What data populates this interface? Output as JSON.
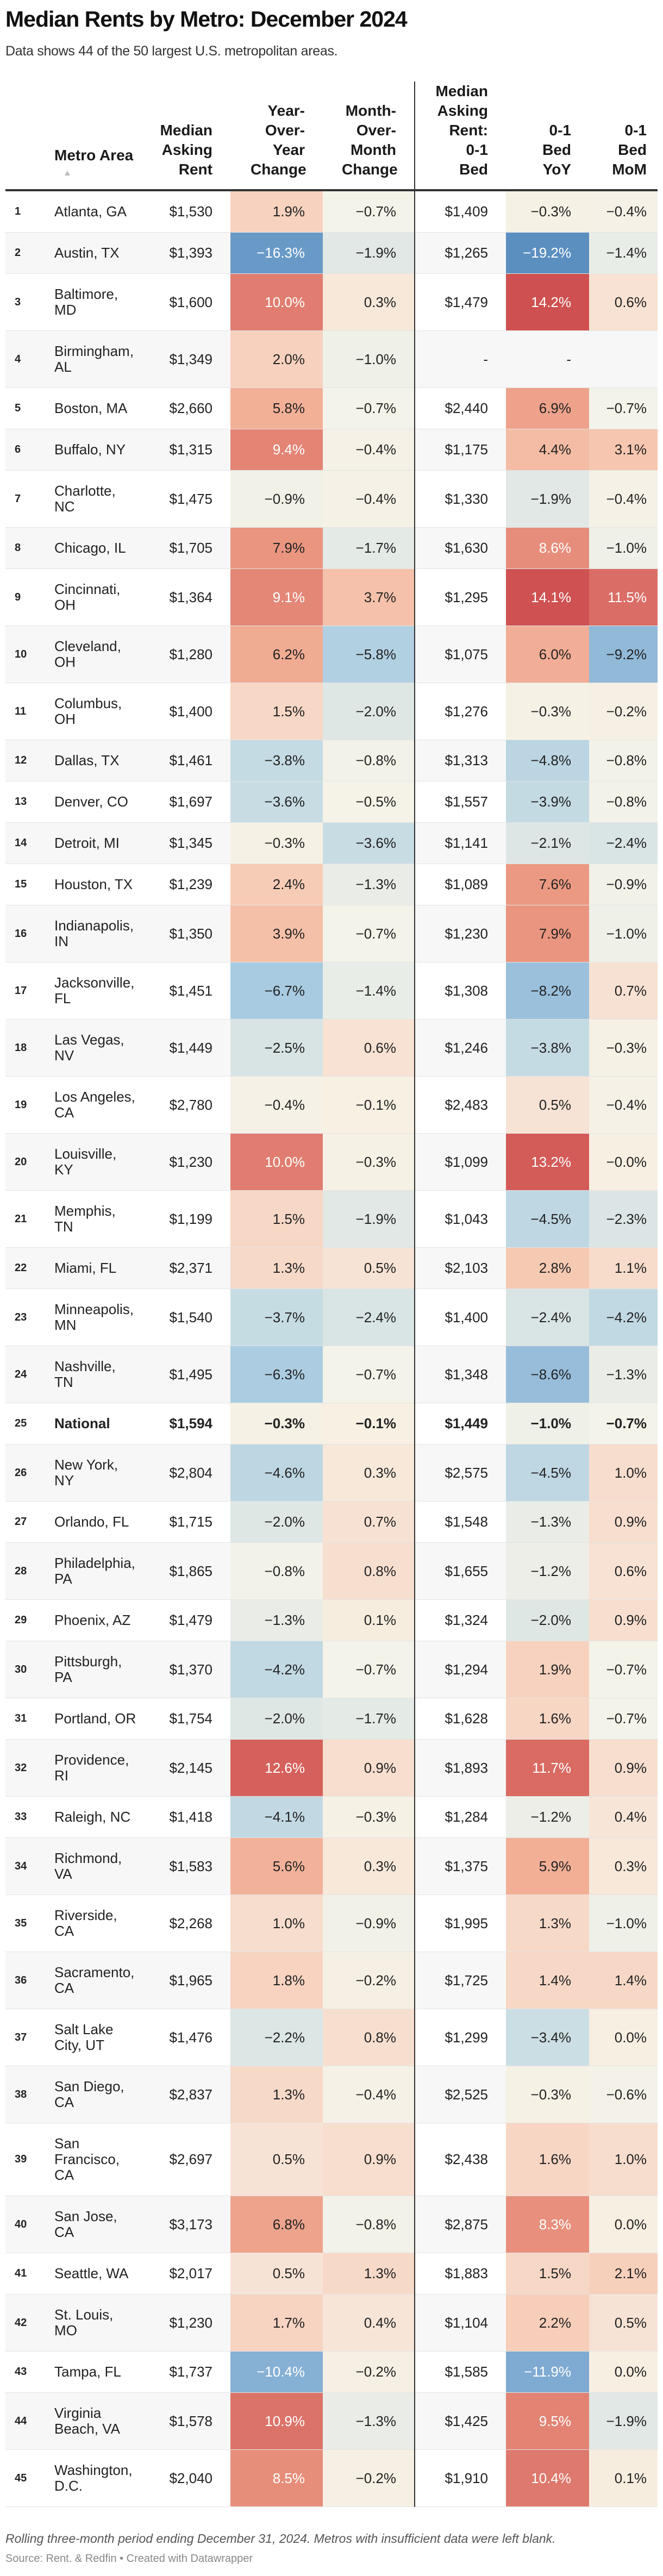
{
  "title": "Median Rents by Metro: December 2024",
  "subtitle": "Data shows 44 of the 50 largest U.S. metropolitan areas.",
  "colors": {
    "negative": "#5b8fc0",
    "neutral": "#f7efe2",
    "positive": "#cf5050",
    "row_alt": "#f7f7f7"
  },
  "chart_data": {
    "type": "table",
    "columns": [
      "",
      "Metro Area",
      "Median Asking Rent",
      "Year-Over-Year Change",
      "Month-Over-Month Change",
      "Median Asking Rent: 0-1 Bed",
      "0-1 Bed YoY",
      "0-1 Bed MoM"
    ],
    "sort": {
      "column": "Metro Area",
      "direction": "ascending",
      "icon": "sort-ascending-icon",
      "symbol": "▲"
    },
    "rows": [
      [
        "1",
        "Atlanta, GA",
        "$1,530",
        "1.9%",
        "−0.7%",
        "$1,409",
        "−0.3%",
        "−0.4%"
      ],
      [
        "2",
        "Austin, TX",
        "$1,393",
        "−16.3%",
        "−1.9%",
        "$1,265",
        "−19.2%",
        "−1.4%"
      ],
      [
        "3",
        "Baltimore, MD",
        "$1,600",
        "10.0%",
        "0.3%",
        "$1,479",
        "14.2%",
        "0.6%"
      ],
      [
        "4",
        "Birmingham, AL",
        "$1,349",
        "2.0%",
        "−1.0%",
        "-",
        "-",
        ""
      ],
      [
        "5",
        "Boston, MA",
        "$2,660",
        "5.8%",
        "−0.7%",
        "$2,440",
        "6.9%",
        "−0.7%"
      ],
      [
        "6",
        "Buffalo, NY",
        "$1,315",
        "9.4%",
        "−0.4%",
        "$1,175",
        "4.4%",
        "3.1%"
      ],
      [
        "7",
        "Charlotte, NC",
        "$1,475",
        "−0.9%",
        "−0.4%",
        "$1,330",
        "−1.9%",
        "−0.4%"
      ],
      [
        "8",
        "Chicago, IL",
        "$1,705",
        "7.9%",
        "−1.7%",
        "$1,630",
        "8.6%",
        "−1.0%"
      ],
      [
        "9",
        "Cincinnati, OH",
        "$1,364",
        "9.1%",
        "3.7%",
        "$1,295",
        "14.1%",
        "11.5%"
      ],
      [
        "10",
        "Cleveland, OH",
        "$1,280",
        "6.2%",
        "−5.8%",
        "$1,075",
        "6.0%",
        "−9.2%"
      ],
      [
        "11",
        "Columbus, OH",
        "$1,400",
        "1.5%",
        "−2.0%",
        "$1,276",
        "−0.3%",
        "−0.2%"
      ],
      [
        "12",
        "Dallas, TX",
        "$1,461",
        "−3.8%",
        "−0.8%",
        "$1,313",
        "−4.8%",
        "−0.8%"
      ],
      [
        "13",
        "Denver, CO",
        "$1,697",
        "−3.6%",
        "−0.5%",
        "$1,557",
        "−3.9%",
        "−0.8%"
      ],
      [
        "14",
        "Detroit, MI",
        "$1,345",
        "−0.3%",
        "−3.6%",
        "$1,141",
        "−2.1%",
        "−2.4%"
      ],
      [
        "15",
        "Houston, TX",
        "$1,239",
        "2.4%",
        "−1.3%",
        "$1,089",
        "7.6%",
        "−0.9%"
      ],
      [
        "16",
        "Indianapolis, IN",
        "$1,350",
        "3.9%",
        "−0.7%",
        "$1,230",
        "7.9%",
        "−1.0%"
      ],
      [
        "17",
        "Jacksonville, FL",
        "$1,451",
        "−6.7%",
        "−1.4%",
        "$1,308",
        "−8.2%",
        "0.7%"
      ],
      [
        "18",
        "Las Vegas, NV",
        "$1,449",
        "−2.5%",
        "0.6%",
        "$1,246",
        "−3.8%",
        "−0.3%"
      ],
      [
        "19",
        "Los Angeles, CA",
        "$2,780",
        "−0.4%",
        "−0.1%",
        "$2,483",
        "0.5%",
        "−0.4%"
      ],
      [
        "20",
        "Louisville, KY",
        "$1,230",
        "10.0%",
        "−0.3%",
        "$1,099",
        "13.2%",
        "−0.0%"
      ],
      [
        "21",
        "Memphis, TN",
        "$1,199",
        "1.5%",
        "−1.9%",
        "$1,043",
        "−4.5%",
        "−2.3%"
      ],
      [
        "22",
        "Miami, FL",
        "$2,371",
        "1.3%",
        "0.5%",
        "$2,103",
        "2.8%",
        "1.1%"
      ],
      [
        "23",
        "Minneapolis, MN",
        "$1,540",
        "−3.7%",
        "−2.4%",
        "$1,400",
        "−2.4%",
        "−4.2%"
      ],
      [
        "24",
        "Nashville, TN",
        "$1,495",
        "−6.3%",
        "−0.7%",
        "$1,348",
        "−8.6%",
        "−1.3%"
      ],
      [
        "25",
        "National",
        "$1,594",
        "−0.3%",
        "−0.1%",
        "$1,449",
        "−1.0%",
        "−0.7%"
      ],
      [
        "26",
        "New York, NY",
        "$2,804",
        "−4.6%",
        "0.3%",
        "$2,575",
        "−4.5%",
        "1.0%"
      ],
      [
        "27",
        "Orlando, FL",
        "$1,715",
        "−2.0%",
        "0.7%",
        "$1,548",
        "−1.3%",
        "0.9%"
      ],
      [
        "28",
        "Philadelphia, PA",
        "$1,865",
        "−0.8%",
        "0.8%",
        "$1,655",
        "−1.2%",
        "0.6%"
      ],
      [
        "29",
        "Phoenix, AZ",
        "$1,479",
        "−1.3%",
        "0.1%",
        "$1,324",
        "−2.0%",
        "0.9%"
      ],
      [
        "30",
        "Pittsburgh, PA",
        "$1,370",
        "−4.2%",
        "−0.7%",
        "$1,294",
        "1.9%",
        "−0.7%"
      ],
      [
        "31",
        "Portland, OR",
        "$1,754",
        "−2.0%",
        "−1.7%",
        "$1,628",
        "1.6%",
        "−0.7%"
      ],
      [
        "32",
        "Providence, RI",
        "$2,145",
        "12.6%",
        "0.9%",
        "$1,893",
        "11.7%",
        "0.9%"
      ],
      [
        "33",
        "Raleigh, NC",
        "$1,418",
        "−4.1%",
        "−0.3%",
        "$1,284",
        "−1.2%",
        "0.4%"
      ],
      [
        "34",
        "Richmond, VA",
        "$1,583",
        "5.6%",
        "0.3%",
        "$1,375",
        "5.9%",
        "0.3%"
      ],
      [
        "35",
        "Riverside, CA",
        "$2,268",
        "1.0%",
        "−0.9%",
        "$1,995",
        "1.3%",
        "−1.0%"
      ],
      [
        "36",
        "Sacramento, CA",
        "$1,965",
        "1.8%",
        "−0.2%",
        "$1,725",
        "1.4%",
        "1.4%"
      ],
      [
        "37",
        "Salt Lake City, UT",
        "$1,476",
        "−2.2%",
        "0.8%",
        "$1,299",
        "−3.4%",
        "0.0%"
      ],
      [
        "38",
        "San Diego, CA",
        "$2,837",
        "1.3%",
        "−0.4%",
        "$2,525",
        "−0.3%",
        "−0.6%"
      ],
      [
        "39",
        "San Francisco, CA",
        "$2,697",
        "0.5%",
        "0.9%",
        "$2,438",
        "1.6%",
        "1.0%"
      ],
      [
        "40",
        "San Jose, CA",
        "$3,173",
        "6.8%",
        "−0.8%",
        "$2,875",
        "8.3%",
        "0.0%"
      ],
      [
        "41",
        "Seattle, WA",
        "$2,017",
        "0.5%",
        "1.3%",
        "$1,883",
        "1.5%",
        "2.1%"
      ],
      [
        "42",
        "St. Louis, MO",
        "$1,230",
        "1.7%",
        "0.4%",
        "$1,104",
        "2.2%",
        "0.5%"
      ],
      [
        "43",
        "Tampa, FL",
        "$1,737",
        "−10.4%",
        "−0.2%",
        "$1,585",
        "−11.9%",
        "0.0%"
      ],
      [
        "44",
        "Virginia Beach, VA",
        "$1,578",
        "10.9%",
        "−1.3%",
        "$1,425",
        "9.5%",
        "−1.9%"
      ],
      [
        "45",
        "Washington, D.C.",
        "$2,040",
        "8.5%",
        "−0.2%",
        "$1,910",
        "10.4%",
        "0.1%"
      ]
    ],
    "highlight_row": "National",
    "color_scaled_columns": [
      "Year-Over-Year Change",
      "Month-Over-Month Change",
      "0-1 Bed YoY",
      "0-1 Bed MoM"
    ]
  },
  "footer": {
    "note": "Rolling three-month period ending December 31, 2024. Metros with insufficient data were left blank.",
    "source": "Source: Rent. & Redfin • Created with Datawrapper"
  }
}
